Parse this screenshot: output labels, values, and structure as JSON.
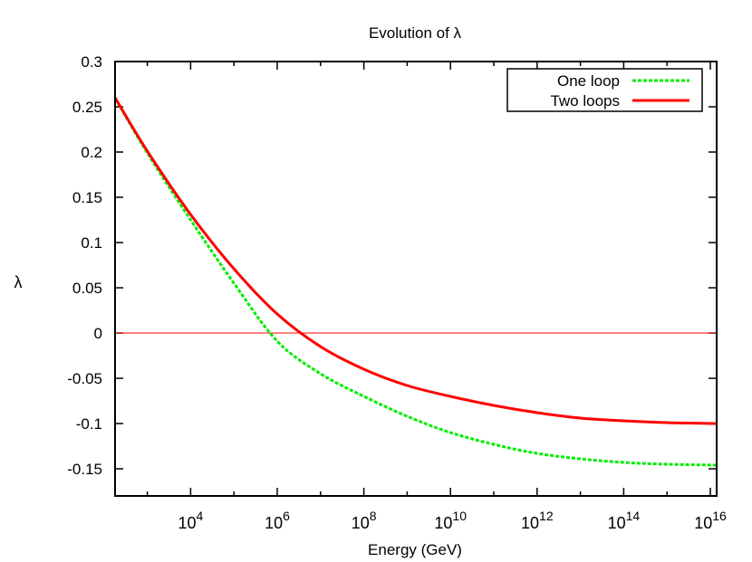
{
  "chart_data": {
    "type": "line",
    "title": "Evolution of λ",
    "xlabel": "Energy (GeV)",
    "ylabel": "λ",
    "xscale": "log",
    "xlim": [
      180,
      1.4e+16
    ],
    "ylim": [
      -0.18,
      0.3
    ],
    "yticks": [
      -0.15,
      -0.1,
      -0.05,
      0,
      0.05,
      0.1,
      0.15,
      0.2,
      0.25,
      0.3
    ],
    "ytick_labels": [
      "-0.15",
      "-0.1",
      "-0.05",
      "0",
      "0.05",
      "0.1",
      "0.15",
      "0.2",
      "0.25",
      "0.3"
    ],
    "xticks": [
      10000.0,
      1000000.0,
      100000000.0,
      10000000000.0,
      1000000000000.0,
      100000000000000.0,
      1e+16
    ],
    "xtick_labels": [
      {
        "base": "10",
        "exp": "4"
      },
      {
        "base": "10",
        "exp": "6"
      },
      {
        "base": "10",
        "exp": "8"
      },
      {
        "base": "10",
        "exp": "10"
      },
      {
        "base": "10",
        "exp": "12"
      },
      {
        "base": "10",
        "exp": "14"
      },
      {
        "base": "10",
        "exp": "16"
      }
    ],
    "grid": false,
    "legend_position": "top-right",
    "reference_line": {
      "y": 0,
      "color": "#ff0000"
    },
    "series": [
      {
        "name": "One loop",
        "style": "dashed",
        "color": "#00ee00",
        "x": [
          180,
          1000.0,
          10000.0,
          100000.0,
          1000000.0,
          10000000.0,
          100000000.0,
          1000000000.0,
          10000000000.0,
          100000000000.0,
          1000000000000.0,
          10000000000000.0,
          100000000000000.0,
          1000000000000000.0,
          1.4e+16
        ],
        "y": [
          0.26,
          0.199,
          0.125,
          0.055,
          -0.009,
          -0.045,
          -0.07,
          -0.092,
          -0.11,
          -0.123,
          -0.133,
          -0.139,
          -0.143,
          -0.145,
          -0.146
        ]
      },
      {
        "name": "Two loops",
        "style": "solid",
        "color": "#ff0000",
        "x": [
          180,
          1000.0,
          10000.0,
          100000.0,
          1000000.0,
          10000000.0,
          100000000.0,
          1000000000.0,
          10000000000.0,
          100000000000.0,
          1000000000000.0,
          10000000000000.0,
          100000000000000.0,
          1000000000000000.0,
          1.4e+16
        ],
        "y": [
          0.26,
          0.201,
          0.131,
          0.071,
          0.021,
          -0.015,
          -0.04,
          -0.058,
          -0.07,
          -0.08,
          -0.088,
          -0.094,
          -0.097,
          -0.099,
          -0.1
        ]
      }
    ]
  }
}
